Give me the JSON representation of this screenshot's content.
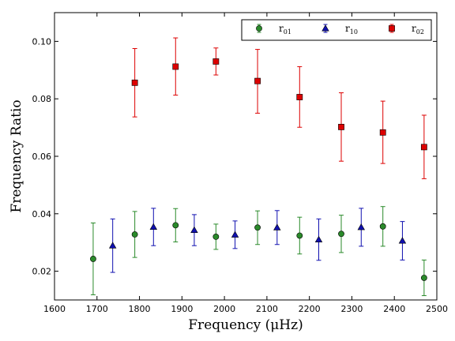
{
  "chart_data": {
    "type": "scatter",
    "xlabel": "Frequency",
    "xlabel_unit": "(μHz)",
    "ylabel": "Frequency Ratio",
    "xlim": [
      1600,
      2500
    ],
    "ylim": [
      0.01,
      0.11
    ],
    "x_ticks": [
      "1600",
      "1700",
      "1800",
      "1900",
      "2000",
      "2100",
      "2200",
      "2300",
      "2400",
      "2500"
    ],
    "y_ticks": [
      "0.02",
      "0.04",
      "0.06",
      "0.08",
      "0.10"
    ],
    "grid": false,
    "legend_placement": "top-right",
    "series": [
      {
        "name": "r01",
        "label_main": "r",
        "label_sub": "01",
        "color": "#2a8a2a",
        "marker": "circle",
        "points": [
          {
            "x": 1691,
            "y": 0.0243,
            "lo": 0.0118,
            "hi": 0.0368
          },
          {
            "x": 1789,
            "y": 0.0328,
            "lo": 0.0248,
            "hi": 0.0408
          },
          {
            "x": 1885,
            "y": 0.036,
            "lo": 0.0302,
            "hi": 0.0418
          },
          {
            "x": 1980,
            "y": 0.032,
            "lo": 0.0276,
            "hi": 0.0364
          },
          {
            "x": 2078,
            "y": 0.0352,
            "lo": 0.0293,
            "hi": 0.041
          },
          {
            "x": 2177,
            "y": 0.0324,
            "lo": 0.026,
            "hi": 0.0388
          },
          {
            "x": 2275,
            "y": 0.033,
            "lo": 0.0265,
            "hi": 0.0395
          },
          {
            "x": 2373,
            "y": 0.0356,
            "lo": 0.0287,
            "hi": 0.0425
          },
          {
            "x": 2470,
            "y": 0.0177,
            "lo": 0.0115,
            "hi": 0.0239
          }
        ]
      },
      {
        "name": "r10",
        "label_main": "r",
        "label_sub": "10",
        "color": "#1010b0",
        "marker": "triangle",
        "points": [
          {
            "x": 1737,
            "y": 0.0289,
            "lo": 0.0196,
            "hi": 0.0382
          },
          {
            "x": 1833,
            "y": 0.0354,
            "lo": 0.0289,
            "hi": 0.0419
          },
          {
            "x": 1929,
            "y": 0.0343,
            "lo": 0.0289,
            "hi": 0.0397
          },
          {
            "x": 2025,
            "y": 0.0327,
            "lo": 0.0279,
            "hi": 0.0375
          },
          {
            "x": 2124,
            "y": 0.0352,
            "lo": 0.0293,
            "hi": 0.0411
          },
          {
            "x": 2222,
            "y": 0.031,
            "lo": 0.0238,
            "hi": 0.0382
          },
          {
            "x": 2322,
            "y": 0.0353,
            "lo": 0.0287,
            "hi": 0.0419
          },
          {
            "x": 2419,
            "y": 0.0306,
            "lo": 0.0239,
            "hi": 0.0373
          }
        ]
      },
      {
        "name": "r02",
        "label_main": "r",
        "label_sub": "02",
        "color": "#dd0000",
        "marker": "square",
        "points": [
          {
            "x": 1789,
            "y": 0.0856,
            "lo": 0.0737,
            "hi": 0.0975
          },
          {
            "x": 1885,
            "y": 0.0912,
            "lo": 0.0813,
            "hi": 0.1012
          },
          {
            "x": 1980,
            "y": 0.093,
            "lo": 0.0883,
            "hi": 0.0977
          },
          {
            "x": 2078,
            "y": 0.0862,
            "lo": 0.075,
            "hi": 0.0972
          },
          {
            "x": 2177,
            "y": 0.0806,
            "lo": 0.0701,
            "hi": 0.0912
          },
          {
            "x": 2275,
            "y": 0.0702,
            "lo": 0.0583,
            "hi": 0.0821
          },
          {
            "x": 2373,
            "y": 0.0683,
            "lo": 0.0575,
            "hi": 0.0792
          },
          {
            "x": 2470,
            "y": 0.0632,
            "lo": 0.0522,
            "hi": 0.0743
          }
        ]
      }
    ]
  }
}
